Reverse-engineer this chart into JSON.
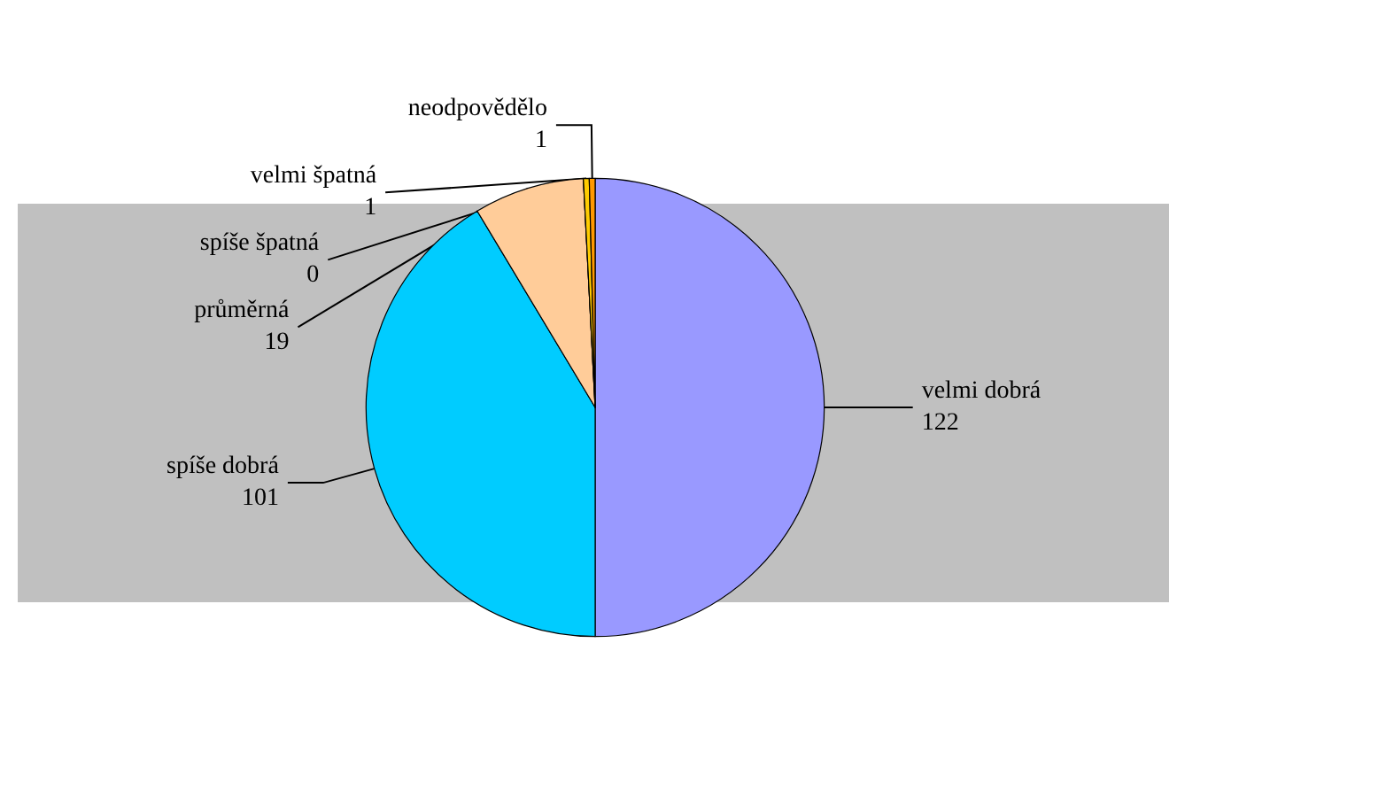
{
  "chart_data": {
    "type": "pie",
    "categories": [
      "velmi dobrá",
      "spíše dobrá",
      "průměrná",
      "spíše špatná",
      "velmi špatná",
      "neodpovědělo"
    ],
    "values": [
      122,
      101,
      19,
      0,
      1,
      1
    ],
    "value_labels": [
      "122",
      "101",
      "19",
      "0",
      "1",
      "1"
    ],
    "colors": [
      "#9999ff",
      "#00ccff",
      "#ffcc99",
      "#993366",
      "#ffcc00",
      "#ff9900"
    ],
    "legend": false
  }
}
